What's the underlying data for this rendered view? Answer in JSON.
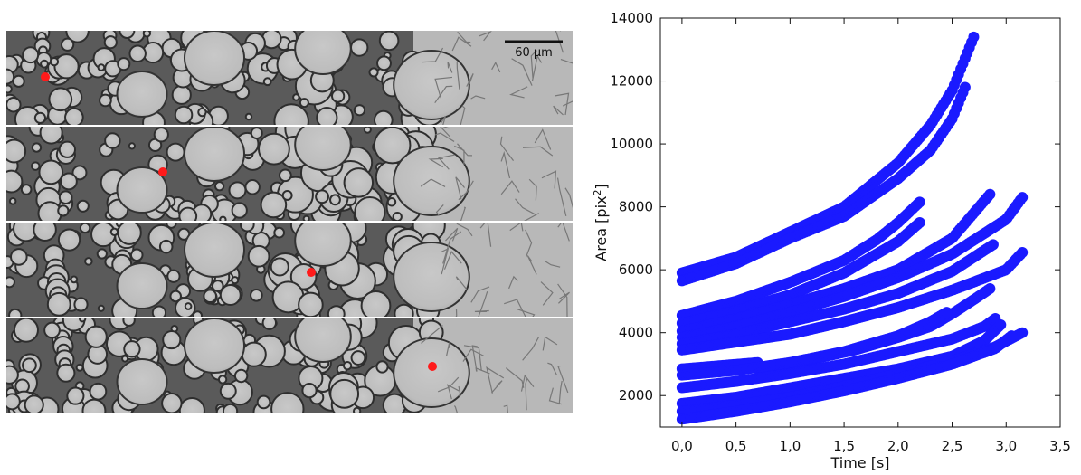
{
  "micrograph": {
    "scale_label": "60 µm",
    "panel_count": 4,
    "marker_color": "#ff1a1a"
  },
  "chart_data": {
    "type": "scatter",
    "xlabel": "Time [s]",
    "ylabel_main": "Area [pix",
    "ylabel_sup": "2",
    "ylabel_end": "]",
    "xlim": [
      -0.2,
      3.5
    ],
    "ylim": [
      1000,
      14000
    ],
    "xticks": [
      "0,0",
      "0,5",
      "1,0",
      "1,5",
      "2,0",
      "2,5",
      "3,0",
      "3,5"
    ],
    "xtick_values": [
      0,
      0.5,
      1.0,
      1.5,
      2.0,
      2.5,
      3.0,
      3.5
    ],
    "yticks": [
      "2000",
      "4000",
      "6000",
      "8000",
      "10000",
      "12000",
      "14000"
    ],
    "ytick_values": [
      2000,
      4000,
      6000,
      8000,
      10000,
      12000,
      14000
    ],
    "marker_color": "#1a1aff",
    "series": [
      {
        "x": [
          0,
          0.5,
          1.0,
          1.5,
          2.0,
          2.3,
          2.5,
          2.7
        ],
        "y": [
          5900,
          6400,
          7200,
          8000,
          9400,
          10600,
          11700,
          13400
        ]
      },
      {
        "x": [
          0,
          0.5,
          1.0,
          1.5,
          2.0,
          2.3,
          2.5,
          2.62
        ],
        "y": [
          5650,
          6200,
          7000,
          7700,
          8900,
          9800,
          10800,
          11800
        ]
      },
      {
        "x": [
          0,
          0.5,
          1.0,
          1.5,
          1.8,
          2.0,
          2.2
        ],
        "y": [
          4550,
          5000,
          5600,
          6300,
          6950,
          7500,
          8150
        ]
      },
      {
        "x": [
          0,
          0.5,
          1.0,
          1.5,
          2.0,
          2.2
        ],
        "y": [
          4300,
          4700,
          5200,
          5900,
          6900,
          7500
        ]
      },
      {
        "x": [
          0,
          0.5,
          1.0,
          1.5,
          2.0,
          2.5,
          2.85
        ],
        "y": [
          4050,
          4450,
          4900,
          5400,
          6000,
          7000,
          8400
        ]
      },
      {
        "x": [
          0,
          0.5,
          1.0,
          1.5,
          2.0,
          2.5,
          3.0,
          3.15
        ],
        "y": [
          3850,
          4200,
          4650,
          5150,
          5750,
          6500,
          7600,
          8300
        ]
      },
      {
        "x": [
          0,
          0.5,
          1.0,
          1.5,
          2.0,
          2.5,
          2.88
        ],
        "y": [
          3650,
          3950,
          4350,
          4750,
          5250,
          5950,
          6800
        ]
      },
      {
        "x": [
          0,
          0.5,
          1.0,
          1.5,
          2.0,
          2.5,
          3.0,
          3.15
        ],
        "y": [
          3450,
          3700,
          3950,
          4350,
          4800,
          5350,
          6000,
          6550
        ]
      },
      {
        "x": [
          0,
          0.7
        ],
        "y": [
          2850,
          3050
        ]
      },
      {
        "x": [
          0.7,
          1.2,
          1.6,
          2.0,
          2.3,
          2.5,
          2.7,
          2.85
        ],
        "y": [
          2850,
          3150,
          3450,
          3850,
          4200,
          4600,
          5050,
          5400
        ]
      },
      {
        "x": [
          0,
          0.5,
          1.0,
          1.5,
          2.0,
          2.3,
          2.45
        ],
        "y": [
          2650,
          2800,
          3050,
          3400,
          3900,
          4350,
          4650
        ]
      },
      {
        "x": [
          0,
          0.5,
          1.0,
          1.5,
          2.0,
          2.5,
          2.8,
          2.9
        ],
        "y": [
          2250,
          2450,
          2700,
          3000,
          3400,
          3800,
          4200,
          4450
        ]
      },
      {
        "x": [
          0,
          0.5,
          1.0,
          1.5,
          2.0,
          2.5,
          2.8,
          2.95
        ],
        "y": [
          1750,
          1950,
          2250,
          2550,
          2850,
          3250,
          3750,
          4250
        ]
      },
      {
        "x": [
          0,
          0.5,
          1.0,
          1.5,
          2.0,
          2.5,
          2.9,
          3.15
        ],
        "y": [
          1500,
          1700,
          1950,
          2300,
          2700,
          3100,
          3550,
          4000
        ]
      },
      {
        "x": [
          0,
          0.5,
          1.0,
          1.5,
          2.0,
          2.5,
          2.9,
          3.05
        ],
        "y": [
          1250,
          1500,
          1800,
          2150,
          2550,
          3000,
          3500,
          3900
        ]
      }
    ]
  }
}
